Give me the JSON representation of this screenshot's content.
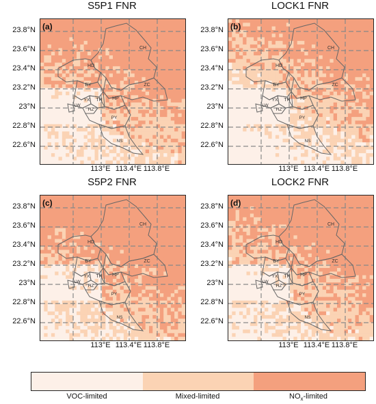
{
  "colors": {
    "voc": "#fdf0e8",
    "mixed": "#fbd3b4",
    "nox": "#f4a07e",
    "grid": "#888888",
    "boundary": "#666666"
  },
  "panels": [
    {
      "title": "S5P1 FNR",
      "letter": "(a)"
    },
    {
      "title": "LOCK1 FNR",
      "letter": "(b)"
    },
    {
      "title": "S5P2 FNR",
      "letter": "(c)"
    },
    {
      "title": "LOCK2 FNR",
      "letter": "(d)"
    }
  ],
  "y_ticks": [
    "23.8°N",
    "23.6°N",
    "23.4°N",
    "23.2°N",
    "23°N",
    "22.8°N",
    "22.6°N"
  ],
  "x_ticks": [
    "113°E",
    "113.4°E",
    "113.8°E"
  ],
  "district_labels": [
    "CH",
    "HD",
    "ZC",
    "BY",
    "HP",
    "TH",
    "YX",
    "LW",
    "HZ",
    "PY",
    "NS"
  ],
  "legend": {
    "voc": "VOC-limited",
    "mixed": "Mixed-limited",
    "nox_prefix": "NO",
    "nox_sub": "x",
    "nox_suffix": "-limited"
  }
}
